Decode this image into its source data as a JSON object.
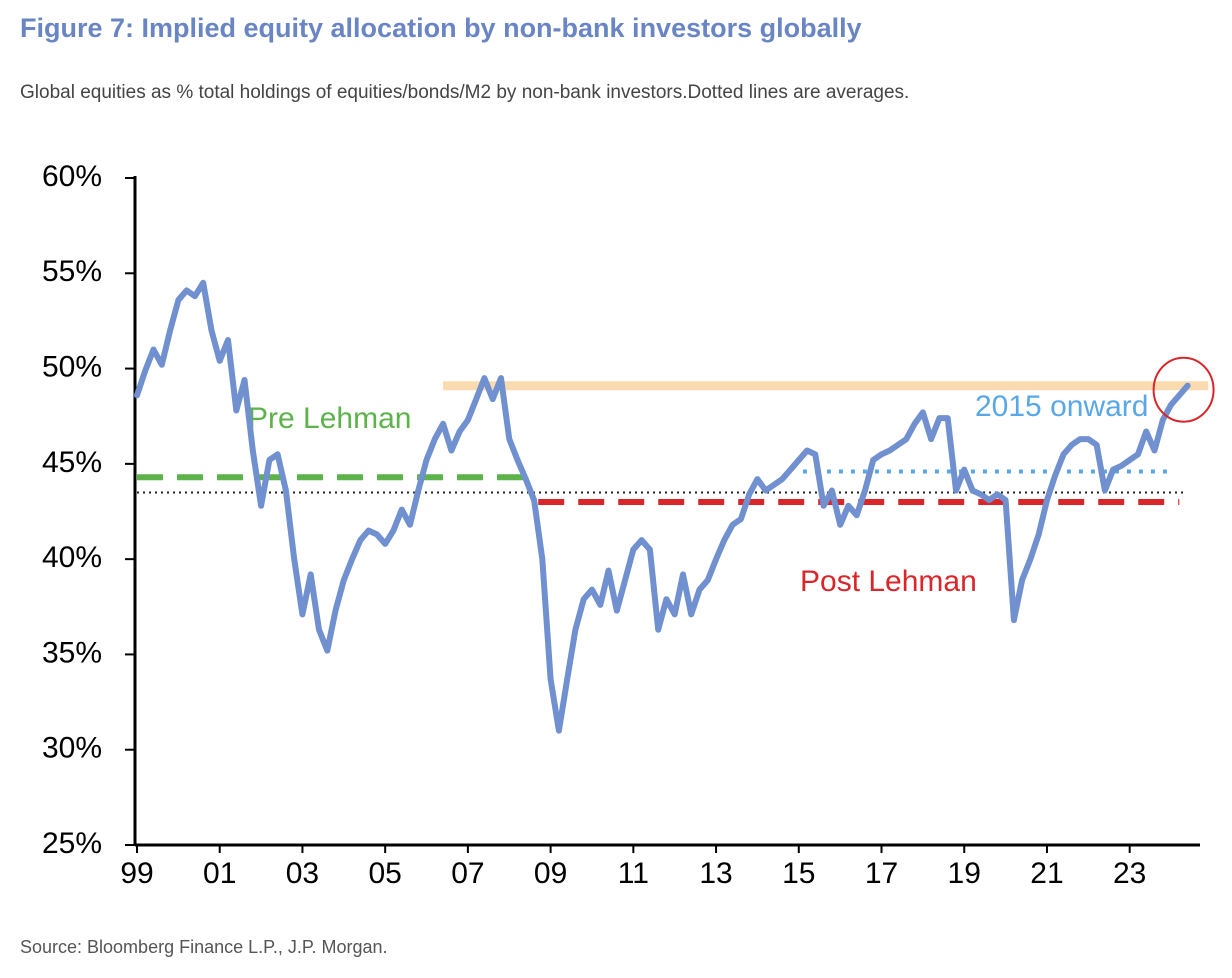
{
  "chart_data": {
    "type": "line",
    "title": "Figure 7: Implied equity allocation by non-bank investors globally",
    "subtitle": "Global equities as % total holdings of equities/bonds/M2 by non-bank investors.Dotted lines are averages.",
    "source": "Source: Bloomberg Finance L.P., J.P. Morgan.",
    "color": "#7090d0",
    "x": [
      1999.0,
      1999.2,
      1999.4,
      1999.6,
      1999.8,
      2000.0,
      2000.2,
      2000.4,
      2000.6,
      2000.8,
      2001.0,
      2001.2,
      2001.4,
      2001.6,
      2001.8,
      2002.0,
      2002.2,
      2002.4,
      2002.6,
      2002.8,
      2003.0,
      2003.2,
      2003.4,
      2003.6,
      2003.8,
      2004.0,
      2004.2,
      2004.4,
      2004.6,
      2004.8,
      2005.0,
      2005.2,
      2005.4,
      2005.6,
      2005.8,
      2006.0,
      2006.2,
      2006.4,
      2006.6,
      2006.8,
      2007.0,
      2007.2,
      2007.4,
      2007.6,
      2007.8,
      2008.0,
      2008.2,
      2008.4,
      2008.6,
      2008.8,
      2009.0,
      2009.2,
      2009.4,
      2009.6,
      2009.8,
      2010.0,
      2010.2,
      2010.4,
      2010.6,
      2010.8,
      2011.0,
      2011.2,
      2011.4,
      2011.6,
      2011.8,
      2012.0,
      2012.2,
      2012.4,
      2012.6,
      2012.8,
      2013.0,
      2013.2,
      2013.4,
      2013.6,
      2013.8,
      2014.0,
      2014.2,
      2014.4,
      2014.6,
      2014.8,
      2015.0,
      2015.2,
      2015.4,
      2015.6,
      2015.8,
      2016.0,
      2016.2,
      2016.4,
      2016.6,
      2016.8,
      2017.0,
      2017.2,
      2017.4,
      2017.6,
      2017.8,
      2018.0,
      2018.2,
      2018.4,
      2018.6,
      2018.8,
      2019.0,
      2019.2,
      2019.4,
      2019.6,
      2019.8,
      2020.0,
      2020.2,
      2020.4,
      2020.6,
      2020.8,
      2021.0,
      2021.2,
      2021.4,
      2021.6,
      2021.8,
      2022.0,
      2022.2,
      2022.4,
      2022.6,
      2022.8,
      2023.0,
      2023.2,
      2023.4,
      2023.6,
      2023.8,
      2024.0,
      2024.2,
      2024.4
    ],
    "values": [
      48.6,
      49.9,
      51,
      50.2,
      52,
      53.6,
      54.1,
      53.8,
      54.5,
      52,
      50.4,
      51.5,
      47.8,
      49.4,
      45.7,
      42.8,
      45.2,
      45.5,
      43.6,
      40,
      37.1,
      39.2,
      36.3,
      35.2,
      37.3,
      38.9,
      40,
      41,
      41.5,
      41.3,
      40.8,
      41.5,
      42.6,
      41.8,
      43.6,
      45.2,
      46.3,
      47.1,
      45.7,
      46.7,
      47.3,
      48.4,
      49.5,
      48.4,
      49.5,
      46.3,
      45.2,
      44.2,
      43.1,
      40,
      33.7,
      31,
      33.7,
      36.3,
      37.9,
      38.4,
      37.6,
      39.4,
      37.3,
      38.9,
      40.5,
      41,
      40.5,
      36.3,
      37.9,
      37.1,
      39.2,
      37.1,
      38.4,
      38.9,
      40,
      41,
      41.8,
      42.1,
      43.4,
      44.2,
      43.6,
      43.9,
      44.2,
      44.7,
      45.2,
      45.7,
      45.5,
      42.8,
      43.6,
      41.8,
      42.8,
      42.3,
      43.6,
      45.2,
      45.5,
      45.7,
      46,
      46.3,
      47.1,
      47.7,
      46.3,
      47.4,
      47.4,
      43.6,
      44.7,
      43.6,
      43.4,
      43.1,
      43.4,
      43.1,
      36.8,
      38.9,
      40,
      41.3,
      43.1,
      44.4,
      45.5,
      46,
      46.3,
      46.3,
      46,
      43.6,
      44.7,
      44.9,
      45.2,
      45.5,
      46.7,
      45.7,
      47.3,
      48.1,
      48.6,
      49.1
    ],
    "xlim": [
      1999,
      2024.7
    ],
    "ylim": [
      25,
      60
    ],
    "xticks": [
      {
        "value": 1999,
        "label": "99"
      },
      {
        "value": 2001,
        "label": "01"
      },
      {
        "value": 2003,
        "label": "03"
      },
      {
        "value": 2005,
        "label": "05"
      },
      {
        "value": 2007,
        "label": "07"
      },
      {
        "value": 2009,
        "label": "09"
      },
      {
        "value": 2011,
        "label": "11"
      },
      {
        "value": 2013,
        "label": "13"
      },
      {
        "value": 2015,
        "label": "15"
      },
      {
        "value": 2017,
        "label": "17"
      },
      {
        "value": 2019,
        "label": "19"
      },
      {
        "value": 2021,
        "label": "21"
      },
      {
        "value": 2023,
        "label": "23"
      }
    ],
    "yticks": [
      {
        "value": 25,
        "label": "25%"
      },
      {
        "value": 30,
        "label": "30%"
      },
      {
        "value": 35,
        "label": "35%"
      },
      {
        "value": 40,
        "label": "40%"
      },
      {
        "value": 45,
        "label": "45%"
      },
      {
        "value": 50,
        "label": "50%"
      },
      {
        "value": 55,
        "label": "55%"
      },
      {
        "value": 60,
        "label": "60%"
      }
    ],
    "reference_lines": [
      {
        "value": 49.1,
        "x_start": 2006.4,
        "x_end": 2024.9,
        "color": "#f8d39c",
        "style": "solid"
      },
      {
        "label": "Pre Lehman",
        "value": 44.3,
        "x_start": 1999,
        "x_end": 2008.5,
        "color": "#5cb34a",
        "style": "dashed"
      },
      {
        "value": 43.5,
        "x_start": 1999,
        "x_end": 2024.3,
        "color": "#222222",
        "style": "dotted"
      },
      {
        "label": "Post Lehman",
        "value": 43.0,
        "x_start": 2008.7,
        "x_end": 2024.2,
        "color": "#d9262a",
        "style": "dashed"
      },
      {
        "label": "2015 onward",
        "value": 44.6,
        "x_start": 2015.1,
        "x_end": 2024.0,
        "color": "#5aa7e8",
        "style": "dotted"
      }
    ]
  }
}
